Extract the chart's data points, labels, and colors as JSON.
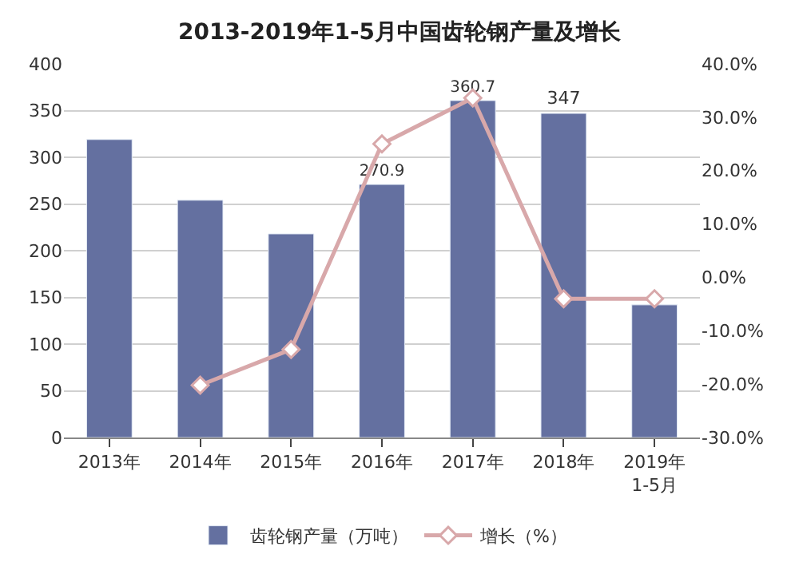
{
  "chart_data": {
    "type": "bar",
    "title": "2013-2019年1-5月中国齿轮钢产量及增长",
    "categories": [
      "2013年",
      "2014年",
      "2015年",
      "2016年",
      "2017年",
      "2018年",
      "2019年\n1-5月"
    ],
    "series": [
      {
        "name": "齿轮钢产量（万吨）",
        "color": "#6470a0",
        "values": [
          319,
          254,
          218,
          270.9,
          360.7,
          347,
          142
        ],
        "value_labels": [
          null,
          null,
          null,
          "270.9",
          "360.7",
          "347",
          null
        ]
      },
      {
        "name": "增长（%）",
        "type": "line",
        "axis": "y2",
        "color": "#d8a8aa",
        "marker": "diamond",
        "values": [
          null,
          -20.2,
          -13.5,
          25,
          33.6,
          -4,
          -4
        ]
      }
    ],
    "ylim": [
      0,
      400
    ],
    "yticks": [
      0,
      50,
      100,
      150,
      200,
      250,
      300,
      350,
      400
    ],
    "y2lim": [
      -30,
      40
    ],
    "y2ticks": [
      {
        "value": -30,
        "label": "-30.0%"
      },
      {
        "value": -20,
        "label": "-20.0%"
      },
      {
        "value": -10,
        "label": "-10.0%"
      },
      {
        "value": 0,
        "label": "0.0%"
      },
      {
        "value": 10,
        "label": "10.0%"
      },
      {
        "value": 20,
        "label": "20.0%"
      },
      {
        "value": 30,
        "label": "30.0%"
      },
      {
        "value": 40,
        "label": "40.0%"
      }
    ],
    "grid": "y",
    "legend": "bottom"
  }
}
